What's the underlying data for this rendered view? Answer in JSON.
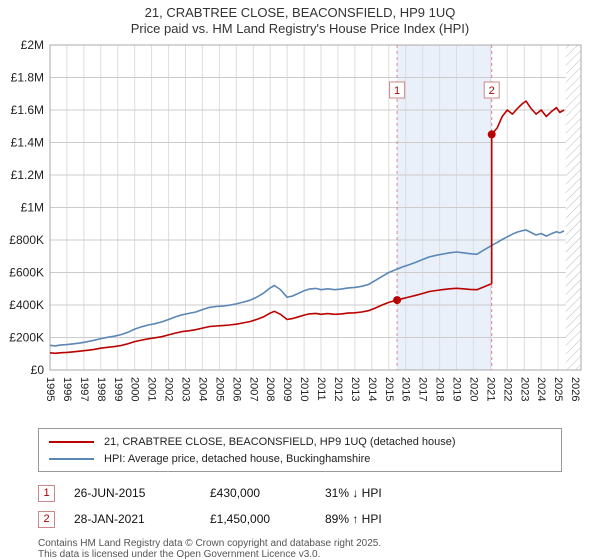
{
  "chart_data": {
    "type": "line",
    "title": "21, CRABTREE CLOSE, BEACONSFIELD, HP9 1UQ",
    "subtitle": "Price paid vs. HM Land Registry's House Price Index (HPI)",
    "x_range": [
      1995,
      2026.35
    ],
    "ylim": [
      0,
      2000000
    ],
    "x_ticks": [
      1995,
      1996,
      1997,
      1998,
      1999,
      2000,
      2001,
      2002,
      2003,
      2004,
      2005,
      2006,
      2007,
      2008,
      2009,
      2010,
      2011,
      2012,
      2013,
      2014,
      2015,
      2016,
      2017,
      2018,
      2019,
      2020,
      2021,
      2022,
      2023,
      2024,
      2025,
      2026
    ],
    "y_ticks": [
      {
        "v": 0,
        "label": "£0"
      },
      {
        "v": 200000,
        "label": "£200K"
      },
      {
        "v": 400000,
        "label": "£400K"
      },
      {
        "v": 600000,
        "label": "£600K"
      },
      {
        "v": 800000,
        "label": "£800K"
      },
      {
        "v": 1000000,
        "label": "£1M"
      },
      {
        "v": 1200000,
        "label": "£1.2M"
      },
      {
        "v": 1400000,
        "label": "£1.4M"
      },
      {
        "v": 1600000,
        "label": "£1.6M"
      },
      {
        "v": 1800000,
        "label": "£1.8M"
      },
      {
        "v": 2000000,
        "label": "£2M"
      }
    ],
    "grid": true,
    "legend_position": "bottom",
    "band": {
      "from": 2015.49,
      "to": 2021.08,
      "color": "#e9f0fa"
    },
    "hatch_from": 2025.45,
    "dashed_line_color": "#dd8888",
    "series": [
      {
        "id": "property-price-line",
        "name": "21, CRABTREE CLOSE, BEACONSFIELD, HP9 1UQ (detached house)",
        "color": "#bb0000",
        "points": [
          [
            1995,
            106000
          ],
          [
            1995.3,
            103000
          ],
          [
            1995.6,
            106000
          ],
          [
            1996,
            108000
          ],
          [
            1996.4,
            112000
          ],
          [
            1996.8,
            116000
          ],
          [
            1997.2,
            121000
          ],
          [
            1997.6,
            127000
          ],
          [
            1998,
            134000
          ],
          [
            1998.4,
            140000
          ],
          [
            1998.8,
            144000
          ],
          [
            1999.2,
            151000
          ],
          [
            1999.6,
            161000
          ],
          [
            2000,
            175000
          ],
          [
            2000.4,
            184000
          ],
          [
            2000.8,
            192000
          ],
          [
            2001.2,
            198000
          ],
          [
            2001.6,
            205000
          ],
          [
            2002,
            216000
          ],
          [
            2002.4,
            227000
          ],
          [
            2002.8,
            236000
          ],
          [
            2003.2,
            241000
          ],
          [
            2003.6,
            248000
          ],
          [
            2004,
            258000
          ],
          [
            2004.4,
            267000
          ],
          [
            2004.8,
            271000
          ],
          [
            2005.2,
            273000
          ],
          [
            2005.6,
            277000
          ],
          [
            2006,
            282000
          ],
          [
            2006.4,
            290000
          ],
          [
            2006.8,
            298000
          ],
          [
            2007.2,
            311000
          ],
          [
            2007.6,
            327000
          ],
          [
            2008,
            350000
          ],
          [
            2008.25,
            361000
          ],
          [
            2008.6,
            343000
          ],
          [
            2009,
            311000
          ],
          [
            2009.3,
            316000
          ],
          [
            2009.6,
            325000
          ],
          [
            2010,
            338000
          ],
          [
            2010.3,
            345000
          ],
          [
            2010.7,
            348000
          ],
          [
            2011,
            343000
          ],
          [
            2011.4,
            347000
          ],
          [
            2011.8,
            343000
          ],
          [
            2012.2,
            345000
          ],
          [
            2012.6,
            350000
          ],
          [
            2013,
            352000
          ],
          [
            2013.4,
            357000
          ],
          [
            2013.8,
            365000
          ],
          [
            2014.2,
            381000
          ],
          [
            2014.6,
            400000
          ],
          [
            2015,
            416000
          ],
          [
            2015.49,
            430000
          ],
          [
            2015.8,
            439000
          ],
          [
            2016.2,
            449000
          ],
          [
            2016.6,
            460000
          ],
          [
            2017,
            471000
          ],
          [
            2017.4,
            483000
          ],
          [
            2017.8,
            489000
          ],
          [
            2018.2,
            495000
          ],
          [
            2018.6,
            500000
          ],
          [
            2019,
            503000
          ],
          [
            2019.4,
            500000
          ],
          [
            2019.8,
            496000
          ],
          [
            2020.2,
            494000
          ],
          [
            2020.6,
            511000
          ],
          [
            2021.08,
            532000
          ],
          [
            2021.08,
            1450000
          ],
          [
            2021.4,
            1490000
          ],
          [
            2021.7,
            1560000
          ],
          [
            2022,
            1600000
          ],
          [
            2022.3,
            1575000
          ],
          [
            2022.6,
            1610000
          ],
          [
            2022.9,
            1640000
          ],
          [
            2023.1,
            1655000
          ],
          [
            2023.4,
            1610000
          ],
          [
            2023.7,
            1575000
          ],
          [
            2024,
            1600000
          ],
          [
            2024.3,
            1560000
          ],
          [
            2024.6,
            1590000
          ],
          [
            2024.9,
            1615000
          ],
          [
            2025.1,
            1585000
          ],
          [
            2025.35,
            1600000
          ]
        ]
      },
      {
        "id": "hpi-line",
        "name": "HPI: Average price, detached house, Buckinghamshire",
        "color": "#5b87b7",
        "points": [
          [
            1995,
            152000
          ],
          [
            1995.3,
            148000
          ],
          [
            1995.6,
            153000
          ],
          [
            1996,
            156000
          ],
          [
            1996.4,
            161000
          ],
          [
            1996.8,
            167000
          ],
          [
            1997.2,
            174000
          ],
          [
            1997.6,
            183000
          ],
          [
            1998,
            193000
          ],
          [
            1998.4,
            201000
          ],
          [
            1998.8,
            208000
          ],
          [
            1999.2,
            218000
          ],
          [
            1999.6,
            232000
          ],
          [
            2000,
            252000
          ],
          [
            2000.4,
            266000
          ],
          [
            2000.8,
            277000
          ],
          [
            2001.2,
            285000
          ],
          [
            2001.6,
            296000
          ],
          [
            2002,
            311000
          ],
          [
            2002.4,
            327000
          ],
          [
            2002.8,
            340000
          ],
          [
            2003.2,
            348000
          ],
          [
            2003.6,
            357000
          ],
          [
            2004,
            372000
          ],
          [
            2004.4,
            385000
          ],
          [
            2004.8,
            391000
          ],
          [
            2005.2,
            393000
          ],
          [
            2005.6,
            399000
          ],
          [
            2006,
            407000
          ],
          [
            2006.4,
            418000
          ],
          [
            2006.8,
            429000
          ],
          [
            2007.2,
            448000
          ],
          [
            2007.6,
            472000
          ],
          [
            2008,
            505000
          ],
          [
            2008.25,
            520000
          ],
          [
            2008.6,
            495000
          ],
          [
            2009,
            448000
          ],
          [
            2009.3,
            455000
          ],
          [
            2009.6,
            468000
          ],
          [
            2010,
            488000
          ],
          [
            2010.3,
            498000
          ],
          [
            2010.7,
            502000
          ],
          [
            2011,
            494000
          ],
          [
            2011.4,
            500000
          ],
          [
            2011.8,
            494000
          ],
          [
            2012.2,
            498000
          ],
          [
            2012.6,
            505000
          ],
          [
            2013,
            508000
          ],
          [
            2013.4,
            515000
          ],
          [
            2013.8,
            526000
          ],
          [
            2014.2,
            550000
          ],
          [
            2014.6,
            576000
          ],
          [
            2015,
            600000
          ],
          [
            2015.49,
            621000
          ],
          [
            2015.8,
            634000
          ],
          [
            2016.2,
            648000
          ],
          [
            2016.6,
            663000
          ],
          [
            2017,
            680000
          ],
          [
            2017.4,
            696000
          ],
          [
            2017.8,
            706000
          ],
          [
            2018.2,
            714000
          ],
          [
            2018.6,
            721000
          ],
          [
            2019,
            726000
          ],
          [
            2019.4,
            721000
          ],
          [
            2019.8,
            716000
          ],
          [
            2020.2,
            712000
          ],
          [
            2020.6,
            737000
          ],
          [
            2021.08,
            767000
          ],
          [
            2021.4,
            785000
          ],
          [
            2021.7,
            803000
          ],
          [
            2022,
            820000
          ],
          [
            2022.3,
            836000
          ],
          [
            2022.6,
            849000
          ],
          [
            2022.9,
            858000
          ],
          [
            2023.1,
            862000
          ],
          [
            2023.4,
            846000
          ],
          [
            2023.7,
            831000
          ],
          [
            2024,
            840000
          ],
          [
            2024.3,
            824000
          ],
          [
            2024.6,
            839000
          ],
          [
            2024.9,
            851000
          ],
          [
            2025.1,
            844000
          ],
          [
            2025.35,
            856000
          ]
        ]
      }
    ],
    "markers": [
      {
        "label": "1",
        "x": 2015.49,
        "y": 430000
      },
      {
        "label": "2",
        "x": 2021.08,
        "y": 1450000
      }
    ]
  },
  "legend": {
    "items": [
      {
        "label": "21, CRABTREE CLOSE, BEACONSFIELD, HP9 1UQ (detached house)",
        "color": "#bb0000"
      },
      {
        "label": "HPI: Average price, detached house, Buckinghamshire",
        "color": "#5b87b7"
      }
    ]
  },
  "transactions": [
    {
      "n": "1",
      "date": "26-JUN-2015",
      "price": "£430,000",
      "hpi_diff": "31% ↓ HPI"
    },
    {
      "n": "2",
      "date": "28-JAN-2021",
      "price": "£1,450,000",
      "hpi_diff": "89% ↑ HPI"
    }
  ],
  "footer": {
    "line1": "Contains HM Land Registry data © Crown copyright and database right 2025.",
    "line2": "This data is licensed under the Open Government Licence v3.0."
  }
}
